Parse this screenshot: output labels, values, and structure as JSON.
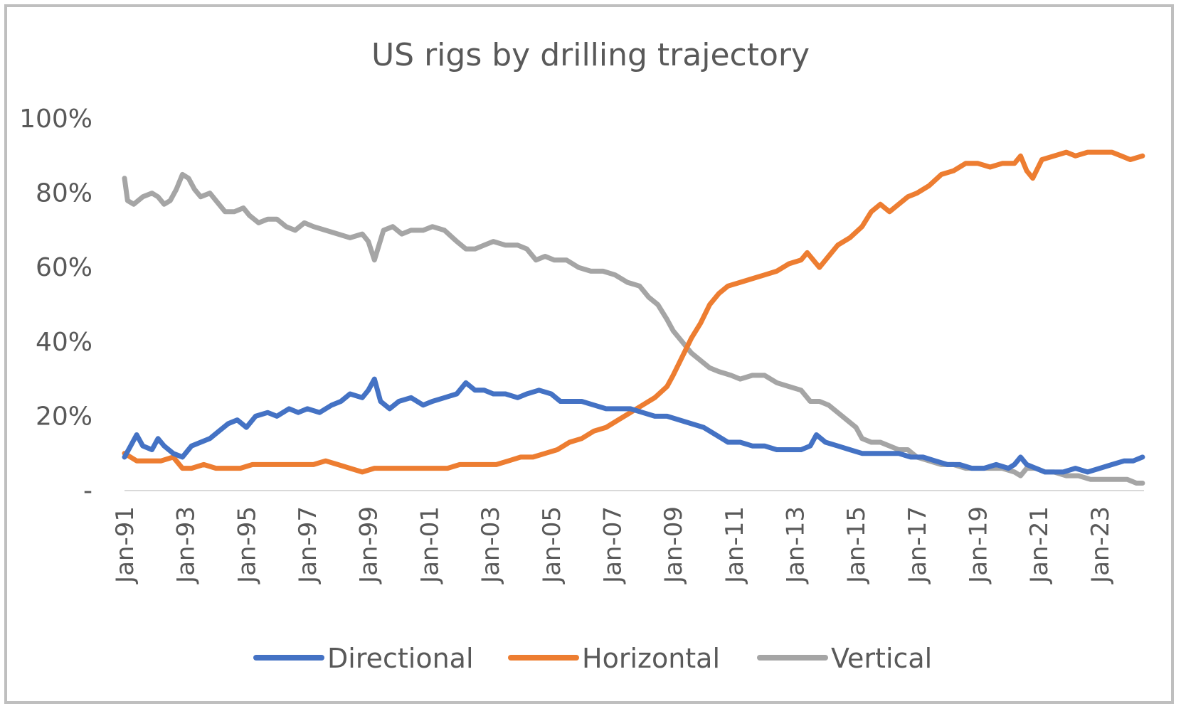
{
  "chart_data": {
    "type": "line",
    "title": "US rigs by drilling trajectory",
    "xlabel": "",
    "ylabel": "",
    "x_range": [
      "Jan-91",
      "Jun-24"
    ],
    "ylim": [
      0,
      100
    ],
    "y_ticks": [
      {
        "value": 0,
        "label": "-"
      },
      {
        "value": 20,
        "label": "20%"
      },
      {
        "value": 40,
        "label": "40%"
      },
      {
        "value": 60,
        "label": "60%"
      },
      {
        "value": 80,
        "label": "80%"
      },
      {
        "value": 100,
        "label": "100%"
      }
    ],
    "x_ticks": [
      {
        "year": 1991,
        "label": "Jan-91"
      },
      {
        "year": 1993,
        "label": "Jan-93"
      },
      {
        "year": 1995,
        "label": "Jan-95"
      },
      {
        "year": 1997,
        "label": "Jan-97"
      },
      {
        "year": 1999,
        "label": "Jan-99"
      },
      {
        "year": 2001,
        "label": "Jan-01"
      },
      {
        "year": 2003,
        "label": "Jan-03"
      },
      {
        "year": 2005,
        "label": "Jan-05"
      },
      {
        "year": 2007,
        "label": "Jan-07"
      },
      {
        "year": 2009,
        "label": "Jan-09"
      },
      {
        "year": 2011,
        "label": "Jan-11"
      },
      {
        "year": 2013,
        "label": "Jan-13"
      },
      {
        "year": 2015,
        "label": "Jan-15"
      },
      {
        "year": 2017,
        "label": "Jan-17"
      },
      {
        "year": 2019,
        "label": "Jan-19"
      },
      {
        "year": 2021,
        "label": "Jan-21"
      },
      {
        "year": 2023,
        "label": "Jan-23"
      }
    ],
    "grid": false,
    "legend_position": "bottom",
    "series": [
      {
        "name": "Directional",
        "color": "#4472c4",
        "points": [
          [
            1991.0,
            9
          ],
          [
            1991.2,
            12
          ],
          [
            1991.4,
            15
          ],
          [
            1991.6,
            12
          ],
          [
            1991.9,
            11
          ],
          [
            1992.1,
            14
          ],
          [
            1992.3,
            12
          ],
          [
            1992.6,
            10
          ],
          [
            1992.9,
            9
          ],
          [
            1993.2,
            12
          ],
          [
            1993.5,
            13
          ],
          [
            1993.8,
            14
          ],
          [
            1994.1,
            16
          ],
          [
            1994.4,
            18
          ],
          [
            1994.7,
            19
          ],
          [
            1995.0,
            17
          ],
          [
            1995.3,
            20
          ],
          [
            1995.7,
            21
          ],
          [
            1996.0,
            20
          ],
          [
            1996.4,
            22
          ],
          [
            1996.7,
            21
          ],
          [
            1997.0,
            22
          ],
          [
            1997.4,
            21
          ],
          [
            1997.8,
            23
          ],
          [
            1998.1,
            24
          ],
          [
            1998.4,
            26
          ],
          [
            1998.8,
            25
          ],
          [
            1999.0,
            27
          ],
          [
            1999.2,
            30
          ],
          [
            1999.4,
            24
          ],
          [
            1999.7,
            22
          ],
          [
            2000.0,
            24
          ],
          [
            2000.4,
            25
          ],
          [
            2000.8,
            23
          ],
          [
            2001.1,
            24
          ],
          [
            2001.5,
            25
          ],
          [
            2001.9,
            26
          ],
          [
            2002.2,
            29
          ],
          [
            2002.5,
            27
          ],
          [
            2002.8,
            27
          ],
          [
            2003.1,
            26
          ],
          [
            2003.5,
            26
          ],
          [
            2003.9,
            25
          ],
          [
            2004.2,
            26
          ],
          [
            2004.6,
            27
          ],
          [
            2005.0,
            26
          ],
          [
            2005.3,
            24
          ],
          [
            2005.7,
            24
          ],
          [
            2006.0,
            24
          ],
          [
            2006.4,
            23
          ],
          [
            2006.8,
            22
          ],
          [
            2007.2,
            22
          ],
          [
            2007.6,
            22
          ],
          [
            2008.0,
            21
          ],
          [
            2008.4,
            20
          ],
          [
            2008.8,
            20
          ],
          [
            2009.2,
            19
          ],
          [
            2009.6,
            18
          ],
          [
            2010.0,
            17
          ],
          [
            2010.4,
            15
          ],
          [
            2010.8,
            13
          ],
          [
            2011.2,
            13
          ],
          [
            2011.6,
            12
          ],
          [
            2012.0,
            12
          ],
          [
            2012.4,
            11
          ],
          [
            2012.8,
            11
          ],
          [
            2013.2,
            11
          ],
          [
            2013.5,
            12
          ],
          [
            2013.7,
            15
          ],
          [
            2014.0,
            13
          ],
          [
            2014.4,
            12
          ],
          [
            2014.8,
            11
          ],
          [
            2015.2,
            10
          ],
          [
            2015.6,
            10
          ],
          [
            2016.0,
            10
          ],
          [
            2016.4,
            10
          ],
          [
            2016.8,
            9
          ],
          [
            2017.2,
            9
          ],
          [
            2017.6,
            8
          ],
          [
            2018.0,
            7
          ],
          [
            2018.4,
            7
          ],
          [
            2018.8,
            6
          ],
          [
            2019.2,
            6
          ],
          [
            2019.6,
            7
          ],
          [
            2020.0,
            6
          ],
          [
            2020.2,
            7
          ],
          [
            2020.4,
            9
          ],
          [
            2020.6,
            7
          ],
          [
            2020.9,
            6
          ],
          [
            2021.2,
            5
          ],
          [
            2021.5,
            5
          ],
          [
            2021.8,
            5
          ],
          [
            2022.2,
            6
          ],
          [
            2022.6,
            5
          ],
          [
            2023.0,
            6
          ],
          [
            2023.4,
            7
          ],
          [
            2023.8,
            8
          ],
          [
            2024.1,
            8
          ],
          [
            2024.4,
            9
          ]
        ]
      },
      {
        "name": "Horizontal",
        "color": "#ed7d31",
        "points": [
          [
            1991.0,
            10
          ],
          [
            1991.4,
            8
          ],
          [
            1991.8,
            8
          ],
          [
            1992.2,
            8
          ],
          [
            1992.6,
            9
          ],
          [
            1992.9,
            6
          ],
          [
            1993.2,
            6
          ],
          [
            1993.6,
            7
          ],
          [
            1994.0,
            6
          ],
          [
            1994.4,
            6
          ],
          [
            1994.8,
            6
          ],
          [
            1995.2,
            7
          ],
          [
            1995.6,
            7
          ],
          [
            1996.0,
            7
          ],
          [
            1996.4,
            7
          ],
          [
            1996.8,
            7
          ],
          [
            1997.2,
            7
          ],
          [
            1997.6,
            8
          ],
          [
            1998.0,
            7
          ],
          [
            1998.4,
            6
          ],
          [
            1998.8,
            5
          ],
          [
            1999.2,
            6
          ],
          [
            1999.6,
            6
          ],
          [
            2000.0,
            6
          ],
          [
            2000.4,
            6
          ],
          [
            2000.8,
            6
          ],
          [
            2001.2,
            6
          ],
          [
            2001.6,
            6
          ],
          [
            2002.0,
            7
          ],
          [
            2002.4,
            7
          ],
          [
            2002.8,
            7
          ],
          [
            2003.2,
            7
          ],
          [
            2003.6,
            8
          ],
          [
            2004.0,
            9
          ],
          [
            2004.4,
            9
          ],
          [
            2004.8,
            10
          ],
          [
            2005.2,
            11
          ],
          [
            2005.6,
            13
          ],
          [
            2006.0,
            14
          ],
          [
            2006.4,
            16
          ],
          [
            2006.8,
            17
          ],
          [
            2007.2,
            19
          ],
          [
            2007.6,
            21
          ],
          [
            2008.0,
            23
          ],
          [
            2008.4,
            25
          ],
          [
            2008.8,
            28
          ],
          [
            2009.0,
            31
          ],
          [
            2009.3,
            36
          ],
          [
            2009.6,
            41
          ],
          [
            2009.9,
            45
          ],
          [
            2010.2,
            50
          ],
          [
            2010.5,
            53
          ],
          [
            2010.8,
            55
          ],
          [
            2011.2,
            56
          ],
          [
            2011.6,
            57
          ],
          [
            2012.0,
            58
          ],
          [
            2012.4,
            59
          ],
          [
            2012.8,
            61
          ],
          [
            2013.2,
            62
          ],
          [
            2013.4,
            64
          ],
          [
            2013.8,
            60
          ],
          [
            2014.1,
            63
          ],
          [
            2014.4,
            66
          ],
          [
            2014.8,
            68
          ],
          [
            2015.2,
            71
          ],
          [
            2015.5,
            75
          ],
          [
            2015.8,
            77
          ],
          [
            2016.1,
            75
          ],
          [
            2016.4,
            77
          ],
          [
            2016.7,
            79
          ],
          [
            2017.0,
            80
          ],
          [
            2017.4,
            82
          ],
          [
            2017.8,
            85
          ],
          [
            2018.2,
            86
          ],
          [
            2018.6,
            88
          ],
          [
            2019.0,
            88
          ],
          [
            2019.4,
            87
          ],
          [
            2019.8,
            88
          ],
          [
            2020.2,
            88
          ],
          [
            2020.4,
            90
          ],
          [
            2020.6,
            86
          ],
          [
            2020.8,
            84
          ],
          [
            2021.1,
            89
          ],
          [
            2021.5,
            90
          ],
          [
            2021.9,
            91
          ],
          [
            2022.2,
            90
          ],
          [
            2022.6,
            91
          ],
          [
            2023.0,
            91
          ],
          [
            2023.4,
            91
          ],
          [
            2023.7,
            90
          ],
          [
            2024.0,
            89
          ],
          [
            2024.4,
            90
          ]
        ]
      },
      {
        "name": "Vertical",
        "color": "#a5a5a5",
        "points": [
          [
            1991.0,
            84
          ],
          [
            1991.1,
            78
          ],
          [
            1991.3,
            77
          ],
          [
            1991.6,
            79
          ],
          [
            1991.9,
            80
          ],
          [
            1992.1,
            79
          ],
          [
            1992.3,
            77
          ],
          [
            1992.5,
            78
          ],
          [
            1992.7,
            81
          ],
          [
            1992.9,
            85
          ],
          [
            1993.1,
            84
          ],
          [
            1993.3,
            81
          ],
          [
            1993.5,
            79
          ],
          [
            1993.8,
            80
          ],
          [
            1994.0,
            78
          ],
          [
            1994.3,
            75
          ],
          [
            1994.6,
            75
          ],
          [
            1994.9,
            76
          ],
          [
            1995.1,
            74
          ],
          [
            1995.4,
            72
          ],
          [
            1995.7,
            73
          ],
          [
            1996.0,
            73
          ],
          [
            1996.3,
            71
          ],
          [
            1996.6,
            70
          ],
          [
            1996.9,
            72
          ],
          [
            1997.2,
            71
          ],
          [
            1997.6,
            70
          ],
          [
            1998.0,
            69
          ],
          [
            1998.4,
            68
          ],
          [
            1998.8,
            69
          ],
          [
            1999.0,
            67
          ],
          [
            1999.2,
            62
          ],
          [
            1999.5,
            70
          ],
          [
            1999.8,
            71
          ],
          [
            2000.1,
            69
          ],
          [
            2000.4,
            70
          ],
          [
            2000.8,
            70
          ],
          [
            2001.1,
            71
          ],
          [
            2001.5,
            70
          ],
          [
            2001.9,
            67
          ],
          [
            2002.2,
            65
          ],
          [
            2002.5,
            65
          ],
          [
            2002.8,
            66
          ],
          [
            2003.1,
            67
          ],
          [
            2003.5,
            66
          ],
          [
            2003.9,
            66
          ],
          [
            2004.2,
            65
          ],
          [
            2004.5,
            62
          ],
          [
            2004.8,
            63
          ],
          [
            2005.1,
            62
          ],
          [
            2005.5,
            62
          ],
          [
            2005.9,
            60
          ],
          [
            2006.3,
            59
          ],
          [
            2006.7,
            59
          ],
          [
            2007.1,
            58
          ],
          [
            2007.5,
            56
          ],
          [
            2007.9,
            55
          ],
          [
            2008.2,
            52
          ],
          [
            2008.5,
            50
          ],
          [
            2008.8,
            46
          ],
          [
            2009.0,
            43
          ],
          [
            2009.3,
            40
          ],
          [
            2009.6,
            37
          ],
          [
            2009.9,
            35
          ],
          [
            2010.2,
            33
          ],
          [
            2010.5,
            32
          ],
          [
            2010.9,
            31
          ],
          [
            2011.2,
            30
          ],
          [
            2011.6,
            31
          ],
          [
            2012.0,
            31
          ],
          [
            2012.4,
            29
          ],
          [
            2012.8,
            28
          ],
          [
            2013.2,
            27
          ],
          [
            2013.5,
            24
          ],
          [
            2013.8,
            24
          ],
          [
            2014.1,
            23
          ],
          [
            2014.4,
            21
          ],
          [
            2014.7,
            19
          ],
          [
            2015.0,
            17
          ],
          [
            2015.2,
            14
          ],
          [
            2015.5,
            13
          ],
          [
            2015.8,
            13
          ],
          [
            2016.1,
            12
          ],
          [
            2016.4,
            11
          ],
          [
            2016.7,
            11
          ],
          [
            2017.0,
            9
          ],
          [
            2017.4,
            8
          ],
          [
            2017.8,
            7
          ],
          [
            2018.2,
            7
          ],
          [
            2018.6,
            6
          ],
          [
            2019.0,
            6
          ],
          [
            2019.4,
            6
          ],
          [
            2019.8,
            6
          ],
          [
            2020.2,
            5
          ],
          [
            2020.4,
            4
          ],
          [
            2020.6,
            6
          ],
          [
            2020.9,
            6
          ],
          [
            2021.2,
            5
          ],
          [
            2021.5,
            5
          ],
          [
            2021.9,
            4
          ],
          [
            2022.3,
            4
          ],
          [
            2022.7,
            3
          ],
          [
            2023.1,
            3
          ],
          [
            2023.5,
            3
          ],
          [
            2023.9,
            3
          ],
          [
            2024.2,
            2
          ],
          [
            2024.4,
            2
          ]
        ]
      }
    ]
  }
}
